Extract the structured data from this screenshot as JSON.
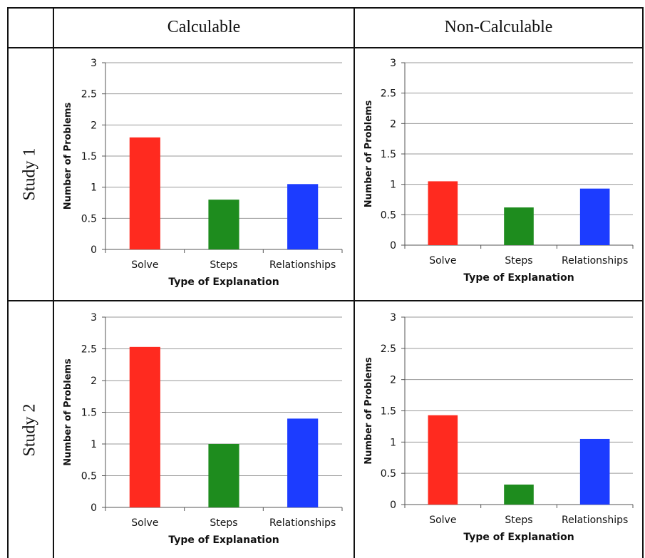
{
  "table": {
    "col_headers": [
      "Calculable",
      "Non-Calculable"
    ],
    "row_headers": [
      "Study 1",
      "Study 2"
    ]
  },
  "chart_data": [
    {
      "type": "bar",
      "panel": "Study 1 / Calculable",
      "categories": [
        "Solve",
        "Steps",
        "Relationships"
      ],
      "values": [
        1.8,
        0.8,
        1.05
      ],
      "colors": [
        "#ff2a1f",
        "#1e8c1e",
        "#1c3cff"
      ],
      "xlabel": "Type of Explanation",
      "ylabel": "Number of Problems",
      "ylim": [
        0,
        3
      ],
      "yticks": [
        "0",
        "0.5",
        "1",
        "1.5",
        "2",
        "2.5",
        "3"
      ],
      "grid": true
    },
    {
      "type": "bar",
      "panel": "Study 1 / Non-Calculable",
      "categories": [
        "Solve",
        "Steps",
        "Relationships"
      ],
      "values": [
        1.05,
        0.62,
        0.93
      ],
      "colors": [
        "#ff2a1f",
        "#1e8c1e",
        "#1c3cff"
      ],
      "xlabel": "Type of Explanation",
      "ylabel": "Number of Problems",
      "ylim": [
        0,
        3
      ],
      "yticks": [
        "0",
        "0.5",
        "1",
        "1.5",
        "2",
        "2.5",
        "3"
      ],
      "grid": true
    },
    {
      "type": "bar",
      "panel": "Study 2 / Calculable",
      "categories": [
        "Solve",
        "Steps",
        "Relationships"
      ],
      "values": [
        2.53,
        1.0,
        1.4
      ],
      "colors": [
        "#ff2a1f",
        "#1e8c1e",
        "#1c3cff"
      ],
      "xlabel": "Type of Explanation",
      "ylabel": "Number of Problems",
      "ylim": [
        0,
        3
      ],
      "yticks": [
        "0",
        "0.5",
        "1",
        "1.5",
        "2",
        "2.5",
        "3"
      ],
      "grid": true
    },
    {
      "type": "bar",
      "panel": "Study 2 / Non-Calculable",
      "categories": [
        "Solve",
        "Steps",
        "Relationships"
      ],
      "values": [
        1.43,
        0.32,
        1.05
      ],
      "colors": [
        "#ff2a1f",
        "#1e8c1e",
        "#1c3cff"
      ],
      "xlabel": "Type of Explanation",
      "ylabel": "Number of Problems",
      "ylim": [
        0,
        3
      ],
      "yticks": [
        "0",
        "0.5",
        "1",
        "1.5",
        "2",
        "2.5",
        "3"
      ],
      "grid": true
    }
  ]
}
